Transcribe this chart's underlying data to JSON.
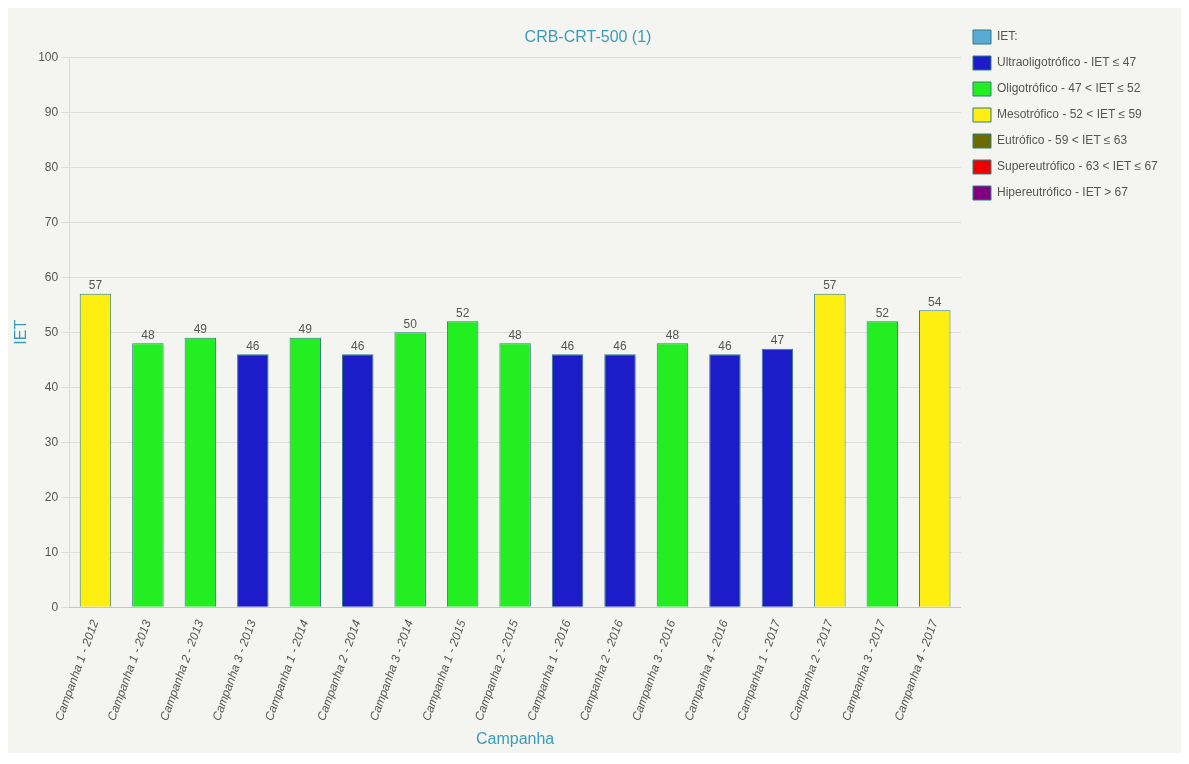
{
  "chart_data": {
    "type": "bar",
    "title": "CRB-CRT-500 (1)",
    "xlabel": "Campanha",
    "ylabel": "IET",
    "categories": [
      "Campanha 1 - 2012",
      "Campanha 1 - 2013",
      "Campanha 2 - 2013",
      "Campanha 3 - 2013",
      "Campanha 1 - 2014",
      "Campanha 2 - 2014",
      "Campanha 3 - 2014",
      "Campanha 1 - 2015",
      "Campanha 2 - 2015",
      "Campanha 1 - 2016",
      "Campanha 2 - 2016",
      "Campanha 3 - 2016",
      "Campanha 4 - 2016",
      "Campanha 1 - 2017",
      "Campanha 2 - 2017",
      "Campanha 3 - 2017",
      "Campanha 4 - 2017"
    ],
    "stacked": true,
    "series": [
      {
        "name": "IET:",
        "color": "#5aaad8",
        "values": [
          null,
          null,
          null,
          null,
          null,
          null,
          null,
          null,
          null,
          null,
          null,
          null,
          null,
          null,
          null,
          null,
          null
        ]
      },
      {
        "name": "Ultraoligotrófico - IET ≤ 47",
        "color": "#1c1cc8",
        "values": [
          null,
          null,
          null,
          46,
          null,
          46,
          null,
          null,
          null,
          46,
          46,
          null,
          46,
          47,
          null,
          null,
          null
        ]
      },
      {
        "name": "Oligotrófico - 47 < IET ≤ 52",
        "color": "#22ee22",
        "values": [
          null,
          48,
          49,
          null,
          49,
          null,
          50,
          52,
          48,
          null,
          null,
          48,
          null,
          null,
          null,
          52,
          null
        ]
      },
      {
        "name": "Mesotrófico - 52 < IET ≤ 59",
        "color": "#ffee11",
        "values": [
          57,
          null,
          null,
          null,
          null,
          null,
          null,
          null,
          null,
          null,
          null,
          null,
          null,
          null,
          57,
          null,
          54
        ]
      },
      {
        "name": "Eutrófico - 59 < IET ≤ 63",
        "color": "#6b6b00",
        "values": [
          null,
          null,
          null,
          null,
          null,
          null,
          null,
          null,
          null,
          null,
          null,
          null,
          null,
          null,
          null,
          null,
          null
        ]
      },
      {
        "name": "Supereutrófico - 63 < IET ≤ 67",
        "color": "#ee0000",
        "values": [
          null,
          null,
          null,
          null,
          null,
          null,
          null,
          null,
          null,
          null,
          null,
          null,
          null,
          null,
          null,
          null,
          null
        ]
      },
      {
        "name": "Hipereutrófico - IET > 67",
        "color": "#800080",
        "values": [
          null,
          null,
          null,
          null,
          null,
          null,
          null,
          null,
          null,
          null,
          null,
          null,
          null,
          null,
          null,
          null,
          null
        ]
      }
    ],
    "ylim": [
      0,
      100
    ],
    "yticks": [
      0,
      10,
      20,
      30,
      40,
      50,
      60,
      70,
      80,
      90,
      100
    ],
    "grid": "y",
    "legend": "top right",
    "data_labels": true
  }
}
